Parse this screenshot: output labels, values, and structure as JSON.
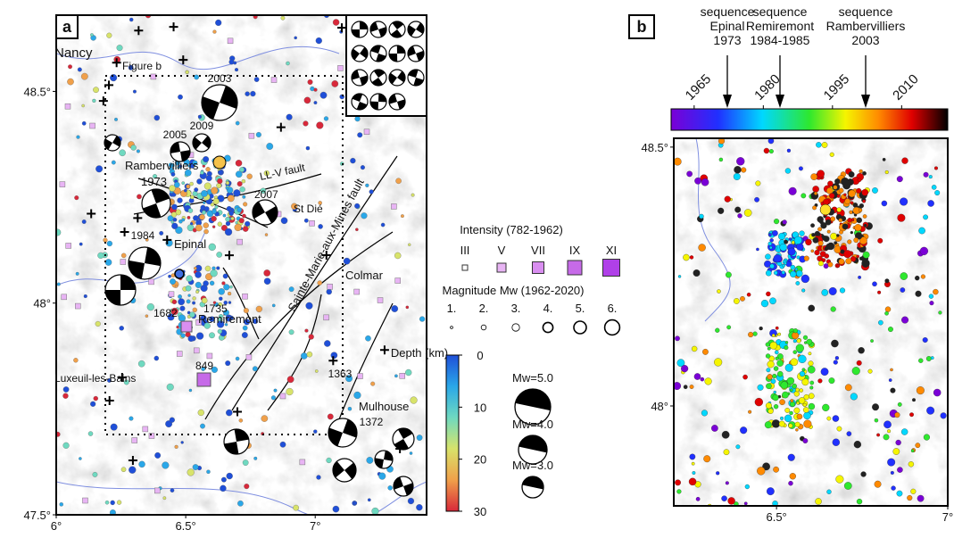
{
  "panel_a": {
    "label": "a",
    "xlim": [
      6,
      7.43
    ],
    "ylim": [
      47.5,
      48.68
    ],
    "xticks": [
      {
        "value": 6,
        "label": "6°"
      },
      {
        "value": 6.5,
        "label": "6.5°"
      },
      {
        "value": 7,
        "label": "7°"
      }
    ],
    "yticks": [
      {
        "value": 47.5,
        "label": "47.5°"
      },
      {
        "value": 48,
        "label": "48°"
      },
      {
        "value": 48.5,
        "label": "48.5°"
      }
    ],
    "places": [
      "Nancy",
      "Figure b",
      "2003",
      "2005",
      "2009",
      "Rambervilliers",
      "1973",
      "LL-V fault",
      "2007",
      "St Dié",
      "1984",
      "Epinal",
      "1682",
      "Remiremont",
      "1735",
      "Sainte-Marie-aux-Mines fault",
      "Colmar",
      "Luxeuil-les-Bains",
      "849",
      "1363",
      "Mulhouse",
      "1372"
    ],
    "intensity_legend": {
      "title": "Intensity (782-1962)",
      "classes": [
        "III",
        "V",
        "VII",
        "IX",
        "XI"
      ]
    },
    "magnitude_legend": {
      "title": "Magnitude Mw (1962-2020)",
      "classes": [
        {
          "value": 1,
          "label": "1."
        },
        {
          "value": 2,
          "label": "2."
        },
        {
          "value": 3,
          "label": "3."
        },
        {
          "value": 4,
          "label": "4."
        },
        {
          "value": 5,
          "label": "5."
        },
        {
          "value": 6,
          "label": "6."
        }
      ]
    },
    "depth_colorbar": {
      "title": "Depth (km)",
      "lim": [
        0,
        30
      ],
      "ticks": [
        0,
        10,
        20,
        30
      ]
    },
    "mechanism_legend": [
      {
        "value": 5,
        "label": "Mw=5.0"
      },
      {
        "value": 4,
        "label": "Mw=4.0"
      },
      {
        "value": 3,
        "label": "Mw=3.0"
      }
    ]
  },
  "panel_b": {
    "label": "b",
    "xlim": [
      6.2,
      7.0
    ],
    "ylim": [
      47.807,
      48.517
    ],
    "xticks": [
      {
        "value": 6.5,
        "label": "6.5°"
      },
      {
        "value": 7,
        "label": "7°"
      }
    ],
    "yticks": [
      {
        "value": 48,
        "label": "48°"
      },
      {
        "value": 48.5,
        "label": "48.5°"
      }
    ],
    "year_colorbar": {
      "lim": [
        1960,
        2020
      ],
      "ticks": [
        1965,
        1980,
        1995,
        2010
      ]
    },
    "sequences": [
      [
        "sequence",
        "Epinal",
        "1973"
      ],
      [
        "sequence",
        "Remiremont",
        "1984-1985"
      ],
      [
        "sequence",
        "Rambervilliers",
        "2003"
      ]
    ]
  }
}
